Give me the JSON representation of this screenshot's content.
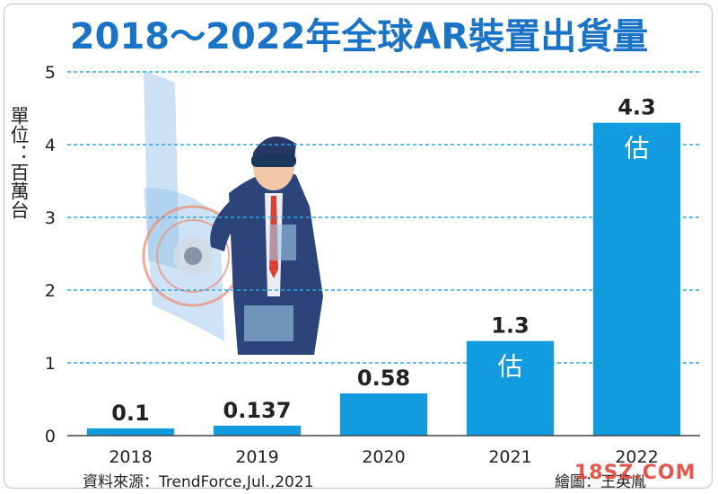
{
  "chart_data": {
    "type": "bar",
    "title": "2018～2022年全球AR裝置出貨量",
    "ylabel": "單位：百萬台",
    "xlabel": "",
    "categories": [
      "2018",
      "2019",
      "2020",
      "2021",
      "2022"
    ],
    "values": [
      0.1,
      0.137,
      0.58,
      1.3,
      4.3
    ],
    "value_labels": [
      "0.1",
      "0.137",
      "0.58",
      "1.3",
      "4.3"
    ],
    "estimate_marks": [
      "",
      "",
      "",
      "估",
      "估"
    ],
    "yticks": [
      "0",
      "1",
      "2",
      "3",
      "4",
      "5"
    ],
    "ylim": [
      0,
      5
    ],
    "grid": true,
    "colors": {
      "bar": "#139be0",
      "grid": "#2aa6e8",
      "title": "#1a73c7",
      "value_text": "#222222",
      "estimate_text": "#ffffff"
    }
  },
  "footer": {
    "source": "資料來源：TrendForce,Jul.,2021",
    "credit": "繪圖：王英胤",
    "watermark": "18SZ.COM"
  },
  "illustration": {
    "description_icon": "ar-headset-businessman-icon"
  }
}
